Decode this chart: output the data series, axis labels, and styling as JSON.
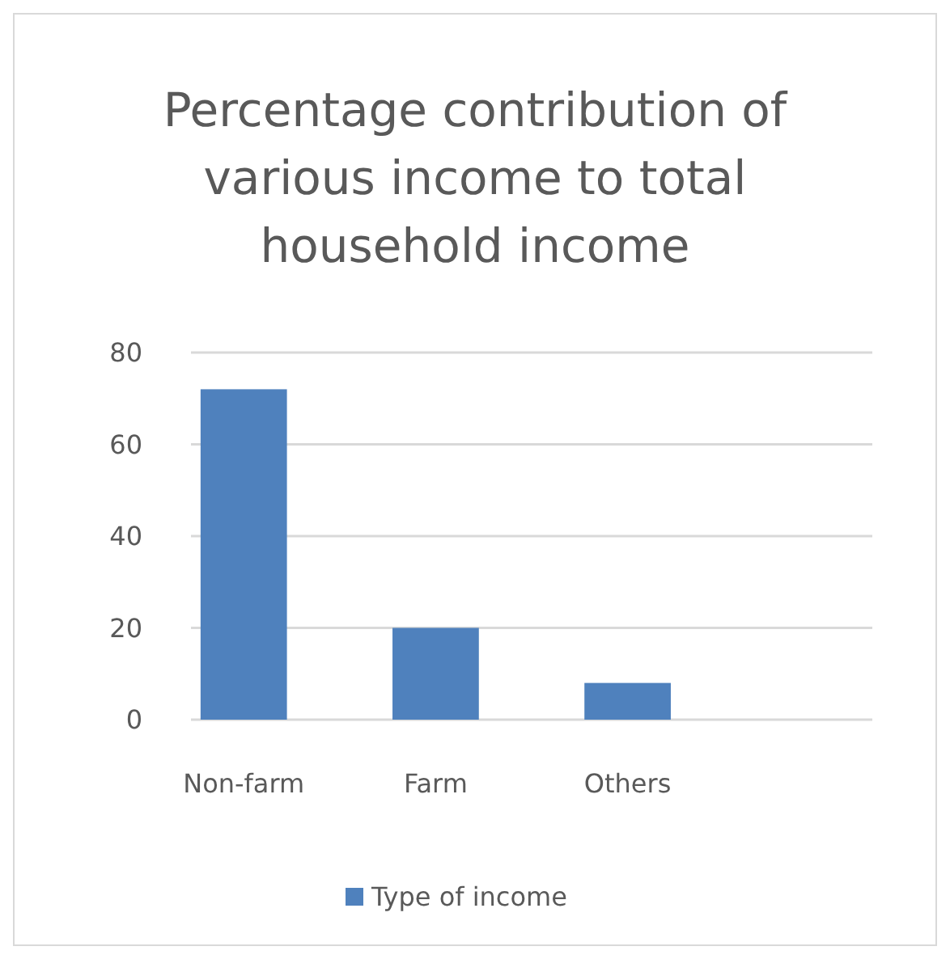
{
  "chart_data": {
    "type": "bar",
    "title": "Percentage contribution of various income to total household income",
    "categories": [
      "Non-farm",
      "Farm",
      "Others"
    ],
    "series": [
      {
        "name": "Type of income",
        "color": "#4f81bd",
        "values": [
          72,
          20,
          8
        ]
      }
    ],
    "ylim": [
      0,
      80
    ],
    "yticks": [
      0,
      20,
      40,
      60,
      80
    ],
    "grid": "y",
    "legend": "bottom"
  }
}
